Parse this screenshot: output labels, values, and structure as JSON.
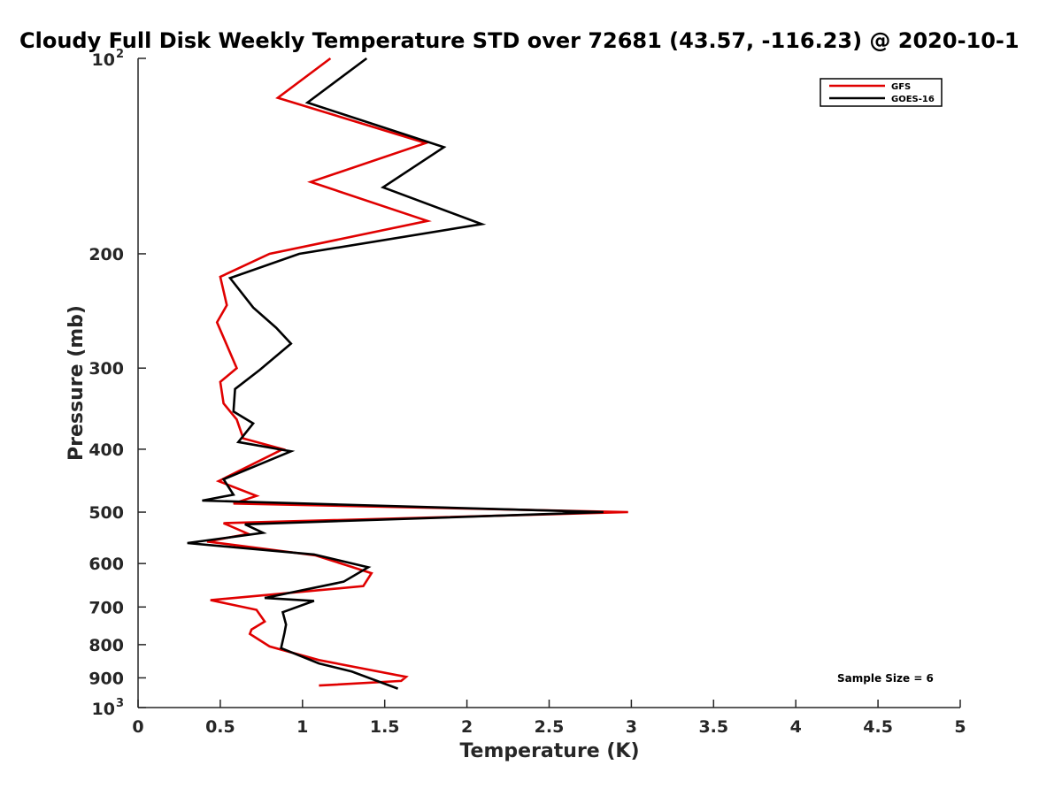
{
  "chart_data": {
    "type": "line",
    "title": "Cloudy Full Disk Weekly Temperature STD over 72681 (43.57, -116.23) @ 2020-10-1",
    "xlabel": "Temperature (K)",
    "ylabel": "Pressure (mb)",
    "xlim": [
      0,
      5
    ],
    "ylim": [
      100,
      1000
    ],
    "y_scale": "log",
    "y_reversed": true,
    "x_ticks": [
      "0",
      "0.5",
      "1",
      "1.5",
      "2",
      "2.5",
      "3",
      "3.5",
      "4",
      "4.5",
      "5"
    ],
    "y_ticks": [
      {
        "value": 100,
        "base": "10",
        "exp": "2"
      },
      {
        "value": 200,
        "label": "200"
      },
      {
        "value": 300,
        "label": "300"
      },
      {
        "value": 400,
        "label": "400"
      },
      {
        "value": 500,
        "label": "500"
      },
      {
        "value": 600,
        "label": "600"
      },
      {
        "value": 700,
        "label": "700"
      },
      {
        "value": 800,
        "label": "800"
      },
      {
        "value": 900,
        "label": "900"
      },
      {
        "value": 1000,
        "base": "10",
        "exp": "3"
      }
    ],
    "grid": false,
    "legend_position": "top-right",
    "annotation": "Sample Size = 6",
    "series": [
      {
        "name": "GFS",
        "color": "#e00000",
        "points": [
          [
            1.17,
            100
          ],
          [
            0.85,
            115
          ],
          [
            1.75,
            135
          ],
          [
            1.05,
            155
          ],
          [
            1.76,
            178
          ],
          [
            0.8,
            200
          ],
          [
            0.5,
            217
          ],
          [
            0.54,
            240
          ],
          [
            0.48,
            255
          ],
          [
            0.6,
            300
          ],
          [
            0.5,
            315
          ],
          [
            0.52,
            340
          ],
          [
            0.6,
            360
          ],
          [
            0.64,
            385
          ],
          [
            0.88,
            400
          ],
          [
            0.49,
            448
          ],
          [
            0.72,
            472
          ],
          [
            0.58,
            485
          ],
          [
            2.98,
            500
          ],
          [
            0.52,
            520
          ],
          [
            0.67,
            540
          ],
          [
            0.42,
            555
          ],
          [
            1.08,
            583
          ],
          [
            1.42,
            621
          ],
          [
            1.37,
            650
          ],
          [
            0.44,
            683
          ],
          [
            0.72,
            707
          ],
          [
            0.77,
            737
          ],
          [
            0.69,
            758
          ],
          [
            0.68,
            770
          ],
          [
            0.8,
            805
          ],
          [
            1.1,
            845
          ],
          [
            1.63,
            897
          ],
          [
            1.6,
            910
          ],
          [
            1.1,
            925
          ]
        ]
      },
      {
        "name": "GOES-16",
        "color": "#000000",
        "points": [
          [
            1.39,
            100
          ],
          [
            1.03,
            117
          ],
          [
            1.86,
            137
          ],
          [
            1.49,
            158
          ],
          [
            2.09,
            180
          ],
          [
            0.98,
            200
          ],
          [
            0.56,
            218
          ],
          [
            0.7,
            242
          ],
          [
            0.84,
            260
          ],
          [
            0.93,
            275
          ],
          [
            0.74,
            302
          ],
          [
            0.59,
            323
          ],
          [
            0.58,
            350
          ],
          [
            0.7,
            365
          ],
          [
            0.61,
            390
          ],
          [
            0.93,
            403
          ],
          [
            0.52,
            445
          ],
          [
            0.58,
            470
          ],
          [
            0.39,
            480
          ],
          [
            2.83,
            500
          ],
          [
            0.65,
            522
          ],
          [
            0.76,
            538
          ],
          [
            0.3,
            558
          ],
          [
            1.07,
            581
          ],
          [
            1.4,
            608
          ],
          [
            1.25,
            640
          ],
          [
            0.77,
            678
          ],
          [
            1.07,
            685
          ],
          [
            0.88,
            713
          ],
          [
            0.9,
            745
          ],
          [
            0.89,
            768
          ],
          [
            0.87,
            810
          ],
          [
            1.1,
            855
          ],
          [
            1.3,
            880
          ],
          [
            1.58,
            935
          ]
        ]
      }
    ]
  }
}
